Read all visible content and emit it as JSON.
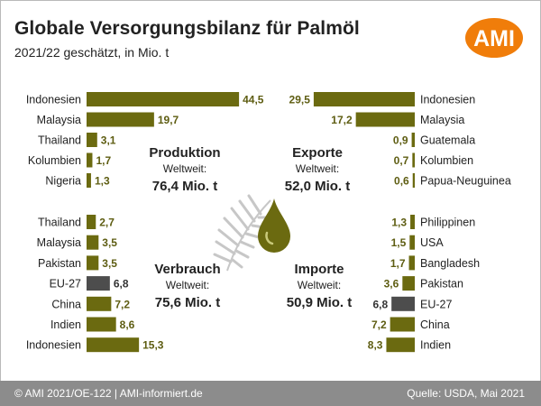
{
  "header": {
    "title": "Globale Versorgungsbilanz für Palmöl",
    "subtitle": "2021/22 geschätzt, in Mio. t",
    "logo_text": "AMI"
  },
  "footer": {
    "left": "© AMI 2021/OE-122 | AMI-informiert.de",
    "right": "Quelle: USDA, Mai 2021"
  },
  "colors": {
    "bar": "#6b6a10",
    "bar_eu": "#4d4d4d",
    "value": "#5e5d12",
    "logo": "#f07d0a",
    "footer": "#8c8c8c"
  },
  "chart_data": [
    {
      "type": "bar",
      "title": "Produktion",
      "subtitle": "Weltweit:",
      "total": "76,4 Mio. t",
      "categories": [
        "Indonesien",
        "Malaysia",
        "Thailand",
        "Kolumbien",
        "Nigeria"
      ],
      "values": [
        44.5,
        19.7,
        3.1,
        1.7,
        1.3
      ],
      "value_labels": [
        "44,5",
        "19,7",
        "3,1",
        "1,7",
        "1,3"
      ]
    },
    {
      "type": "bar",
      "title": "Exporte",
      "subtitle": "Weltweit:",
      "total": "52,0 Mio. t",
      "categories": [
        "Indonesien",
        "Malaysia",
        "Guatemala",
        "Kolumbien",
        "Papua-Neuguinea"
      ],
      "values": [
        29.5,
        17.2,
        0.9,
        0.7,
        0.6
      ],
      "value_labels": [
        "29,5",
        "17,2",
        "0,9",
        "0,7",
        "0,6"
      ]
    },
    {
      "type": "bar",
      "title": "Verbrauch",
      "subtitle": "Weltweit:",
      "total": "75,6 Mio. t",
      "categories": [
        "Thailand",
        "Malaysia",
        "Pakistan",
        "EU-27",
        "China",
        "Indien",
        "Indonesien"
      ],
      "values": [
        2.7,
        3.5,
        3.5,
        6.8,
        7.2,
        8.6,
        15.3
      ],
      "value_labels": [
        "2,7",
        "3,5",
        "3,5",
        "6,8",
        "7,2",
        "8,6",
        "15,3"
      ],
      "highlight": "EU-27"
    },
    {
      "type": "bar",
      "title": "Importe",
      "subtitle": "Weltweit:",
      "total": "50,9 Mio. t",
      "categories": [
        "Philippinen",
        "USA",
        "Bangladesh",
        "Pakistan",
        "EU-27",
        "China",
        "Indien"
      ],
      "values": [
        1.3,
        1.5,
        1.7,
        3.6,
        6.8,
        7.2,
        8.3
      ],
      "value_labels": [
        "1,3",
        "1,5",
        "1,7",
        "3,6",
        "6,8",
        "7,2",
        "8,3"
      ],
      "highlight": "EU-27"
    }
  ]
}
